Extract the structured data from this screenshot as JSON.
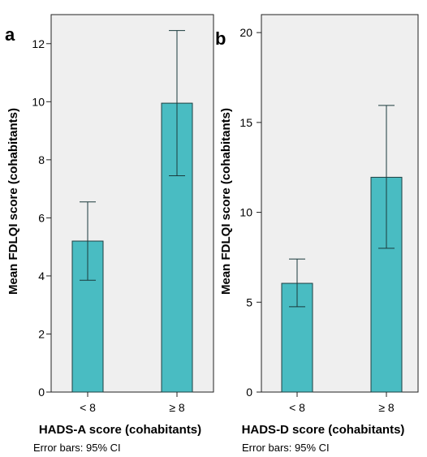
{
  "styles": {
    "bar_fill": "#49bcc2",
    "bar_stroke": "#1f3f41",
    "plot_bg": "#efefef",
    "error_bar_color": "#1a3a3c"
  },
  "chart_data": [
    {
      "type": "bar",
      "panel_label": "a",
      "categories": [
        "< 8",
        "≥ 8"
      ],
      "values": [
        5.2,
        9.95
      ],
      "ci_low": [
        3.85,
        7.45
      ],
      "ci_high": [
        6.55,
        12.45
      ],
      "ylim": [
        0,
        13
      ],
      "yticks": [
        0,
        2,
        4,
        6,
        8,
        10,
        12
      ],
      "xlabel": "HADS-A score (cohabitants)",
      "ylabel": "Mean FDLQI score (cohabitants)",
      "note": "Error bars: 95% CI",
      "grid": false
    },
    {
      "type": "bar",
      "panel_label": "b",
      "categories": [
        "< 8",
        "≥ 8"
      ],
      "values": [
        6.05,
        11.95
      ],
      "ci_low": [
        4.75,
        8.0
      ],
      "ci_high": [
        7.4,
        15.95
      ],
      "ylim": [
        0,
        21
      ],
      "yticks": [
        0,
        5,
        10,
        15,
        20
      ],
      "xlabel": "HADS-D score (cohabitants)",
      "ylabel": "Mean FDLQI score (cohabitants)",
      "note": "Error bars: 95% CI",
      "grid": false
    }
  ]
}
